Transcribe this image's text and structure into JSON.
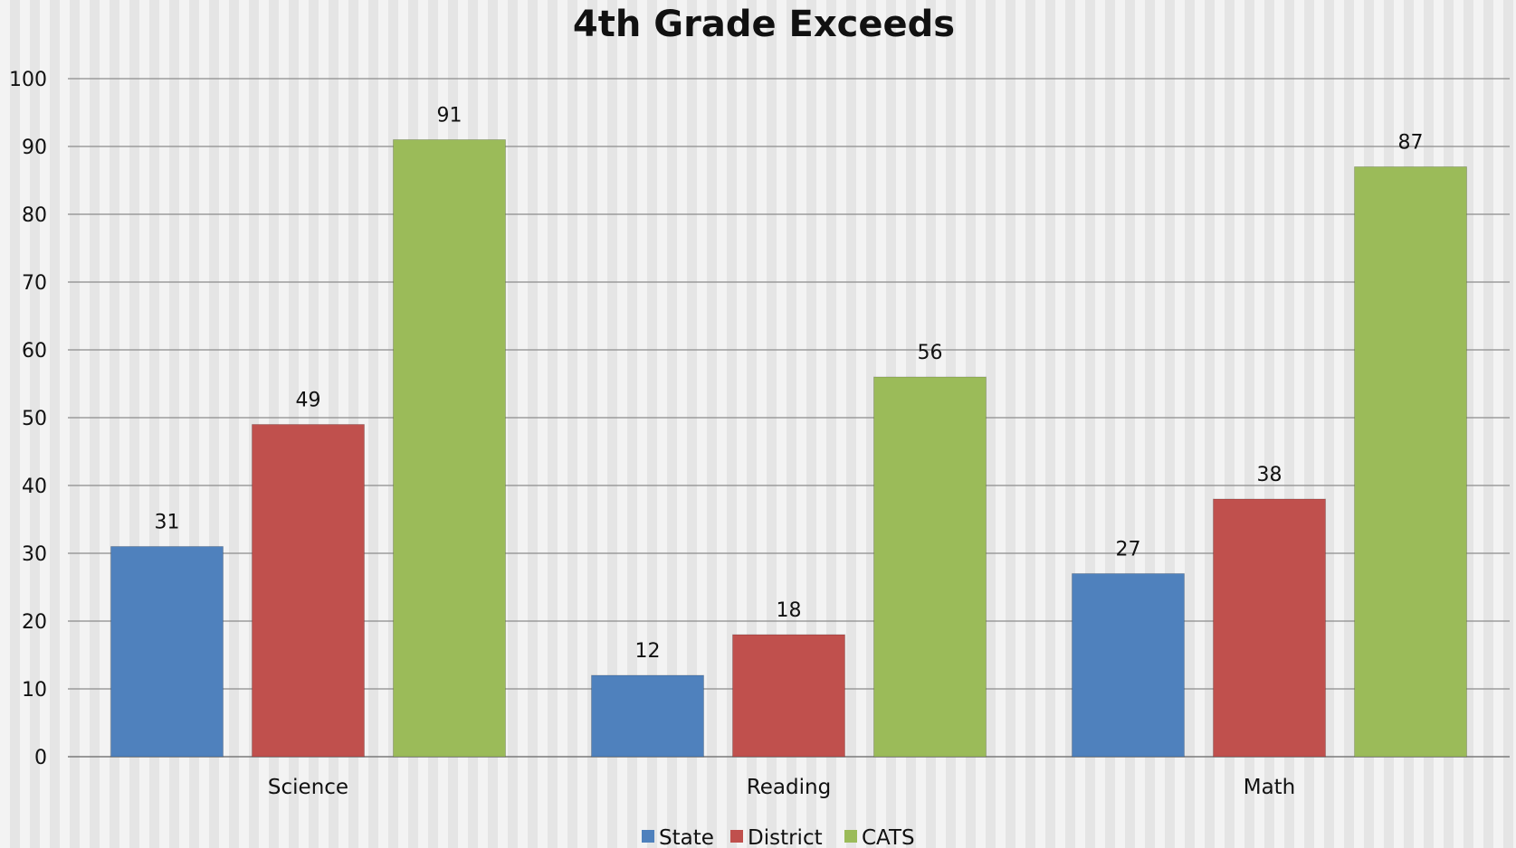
{
  "chart_data": {
    "type": "bar",
    "title": "4th Grade Exceeds",
    "categories": [
      "Science",
      "Reading",
      "Math"
    ],
    "series": [
      {
        "name": "State",
        "color": "#4f81bd",
        "values": [
          31,
          12,
          27
        ]
      },
      {
        "name": "District",
        "color": "#c0504d",
        "values": [
          49,
          18,
          38
        ]
      },
      {
        "name": "CATS",
        "color": "#9bbb59",
        "values": [
          91,
          56,
          87
        ]
      }
    ],
    "ylim": [
      0,
      100
    ],
    "yticks": [
      0,
      10,
      20,
      30,
      40,
      50,
      60,
      70,
      80,
      90,
      100
    ],
    "grid": true,
    "legend_position": "bottom",
    "data_labels": true
  }
}
